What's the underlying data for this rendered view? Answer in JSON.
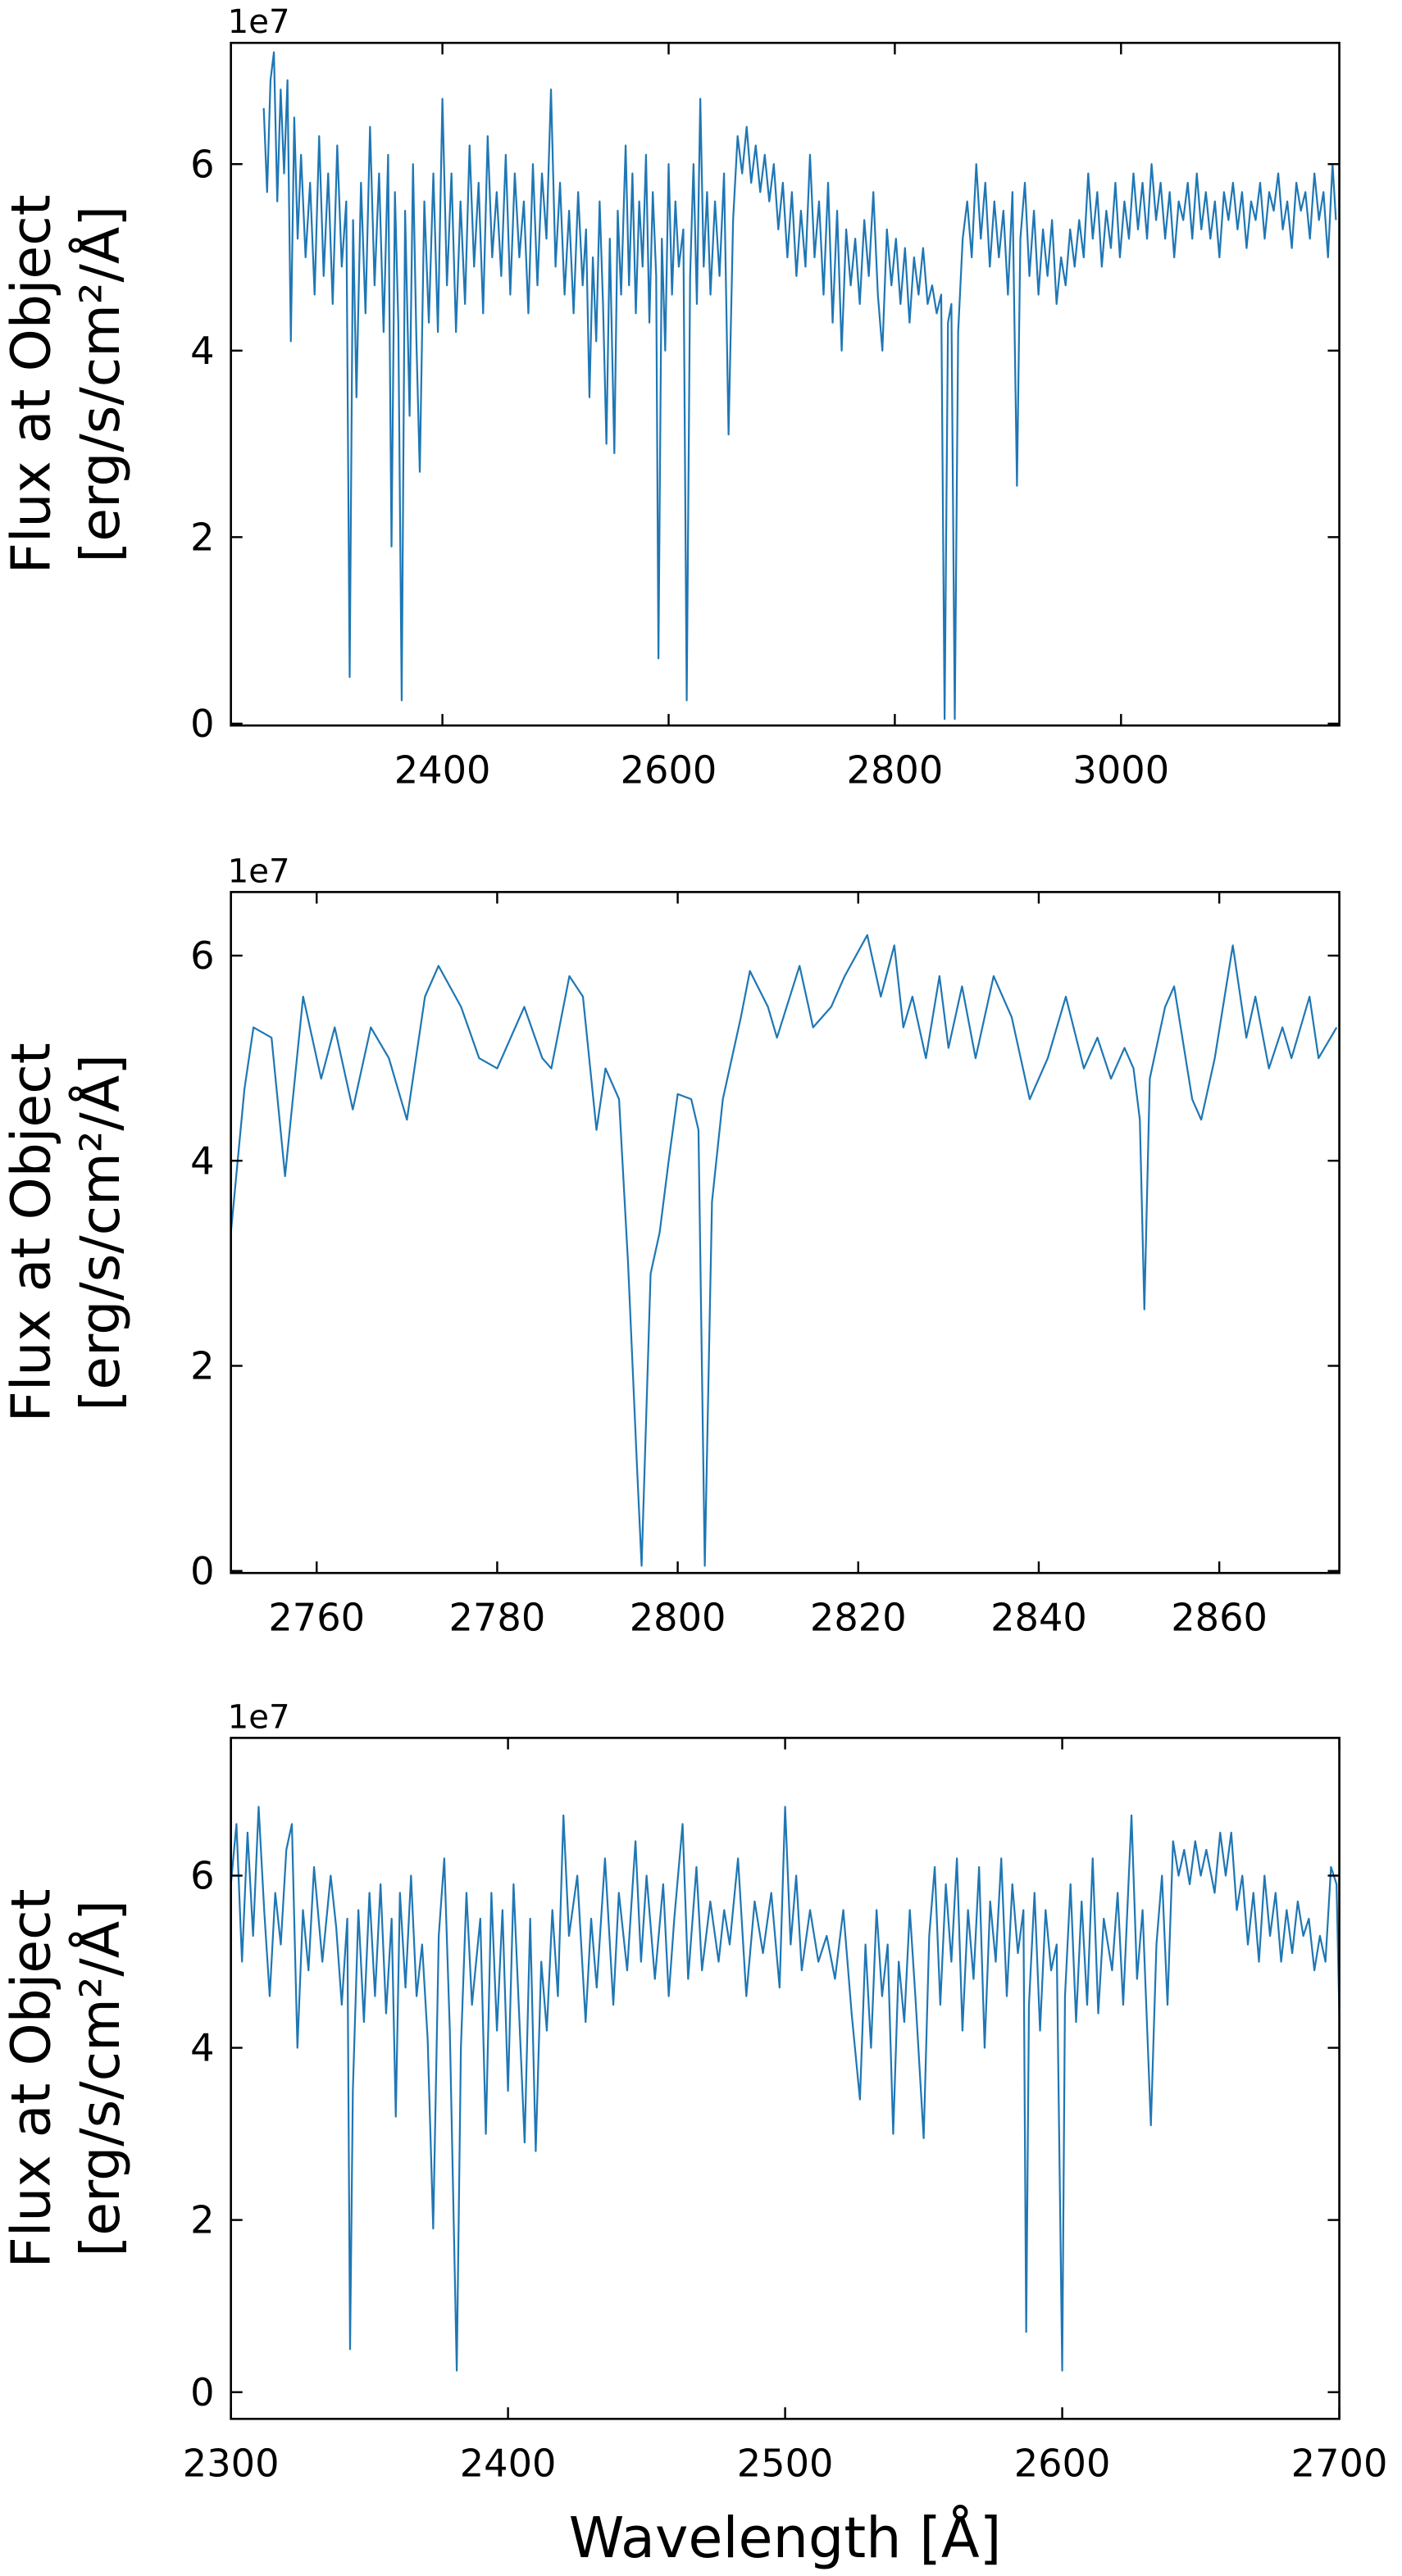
{
  "chart_data": [
    {
      "type": "line",
      "color": "#1f77b4",
      "offset_label": "1e7",
      "ylabel": [
        "Flux at Object",
        "[erg/s/cm²/Å]"
      ],
      "xlim": [
        2213,
        3193
      ],
      "ylim": [
        -0.02,
        7.3
      ],
      "xticks": [
        2400,
        2600,
        2800,
        3000
      ],
      "yticks": [
        0,
        2,
        4,
        6
      ],
      "x": [
        2242,
        2245,
        2248,
        2251,
        2254,
        2257,
        2260,
        2263,
        2266,
        2269,
        2272,
        2275,
        2279,
        2283,
        2287,
        2291,
        2295,
        2299,
        2303,
        2307,
        2311,
        2315,
        2318,
        2321,
        2324,
        2328,
        2332,
        2336,
        2340,
        2344,
        2348,
        2352,
        2355,
        2358,
        2361,
        2364,
        2367,
        2371,
        2374,
        2377,
        2380,
        2384,
        2388,
        2392,
        2396,
        2400,
        2404,
        2408,
        2412,
        2416,
        2420,
        2424,
        2428,
        2432,
        2436,
        2440,
        2444,
        2448,
        2452,
        2456,
        2460,
        2464,
        2468,
        2472,
        2476,
        2480,
        2484,
        2488,
        2492,
        2496,
        2500,
        2504,
        2508,
        2512,
        2516,
        2520,
        2524,
        2527,
        2530,
        2533,
        2536,
        2539,
        2542,
        2545,
        2548,
        2552,
        2555,
        2558,
        2562,
        2565,
        2568,
        2571,
        2574,
        2577,
        2580,
        2583,
        2586,
        2589,
        2591,
        2594,
        2597,
        2600,
        2603,
        2606,
        2609,
        2613,
        2616,
        2619,
        2622,
        2625,
        2628,
        2631,
        2634,
        2637,
        2641,
        2645,
        2649,
        2653,
        2657,
        2661,
        2665,
        2669,
        2673,
        2677,
        2681,
        2685,
        2689,
        2693,
        2697,
        2701,
        2705,
        2709,
        2713,
        2717,
        2721,
        2725,
        2729,
        2733,
        2737,
        2741,
        2745,
        2749,
        2753,
        2757,
        2761,
        2765,
        2769,
        2773,
        2777,
        2781,
        2785,
        2789,
        2793,
        2797,
        2801,
        2805,
        2809,
        2813,
        2817,
        2821,
        2825,
        2829,
        2833,
        2837,
        2841,
        2844,
        2847,
        2850,
        2853,
        2856,
        2860,
        2864,
        2868,
        2872,
        2876,
        2880,
        2884,
        2888,
        2892,
        2896,
        2900,
        2904,
        2908,
        2911,
        2915,
        2919,
        2923,
        2927,
        2931,
        2935,
        2939,
        2943,
        2947,
        2951,
        2955,
        2959,
        2963,
        2967,
        2971,
        2975,
        2979,
        2983,
        2987,
        2991,
        2995,
        2999,
        3003,
        3007,
        3011,
        3015,
        3019,
        3023,
        3027,
        3031,
        3035,
        3039,
        3043,
        3047,
        3051,
        3055,
        3059,
        3063,
        3067,
        3071,
        3075,
        3079,
        3083,
        3087,
        3091,
        3095,
        3099,
        3103,
        3107,
        3111,
        3115,
        3119,
        3123,
        3127,
        3131,
        3135,
        3139,
        3143,
        3147,
        3151,
        3155,
        3159,
        3163,
        3167,
        3171,
        3175,
        3179,
        3183,
        3187,
        3190
      ],
      "values": [
        6.6,
        5.7,
        6.9,
        7.2,
        5.6,
        6.8,
        5.9,
        6.9,
        4.1,
        6.5,
        5.2,
        6.1,
        5.0,
        5.8,
        4.6,
        6.3,
        4.8,
        5.9,
        4.5,
        6.2,
        4.9,
        5.6,
        0.5,
        5.4,
        3.5,
        5.8,
        4.4,
        6.4,
        4.7,
        5.9,
        4.2,
        6.1,
        1.9,
        5.7,
        4.3,
        0.25,
        5.5,
        3.3,
        6.0,
        4.1,
        2.7,
        5.6,
        4.3,
        5.9,
        4.2,
        6.7,
        4.7,
        5.9,
        4.2,
        5.6,
        4.5,
        6.2,
        4.9,
        5.8,
        4.4,
        6.3,
        5.0,
        5.7,
        4.8,
        6.1,
        4.6,
        5.9,
        5.0,
        5.6,
        4.4,
        6.0,
        4.7,
        5.9,
        5.2,
        6.8,
        4.9,
        5.8,
        4.6,
        5.5,
        4.4,
        5.7,
        4.7,
        5.3,
        3.5,
        5.0,
        4.1,
        5.6,
        4.5,
        3.0,
        5.2,
        2.9,
        5.5,
        4.6,
        6.2,
        4.7,
        5.9,
        4.4,
        5.6,
        4.9,
        6.1,
        4.3,
        5.7,
        4.8,
        0.7,
        5.2,
        4.0,
        6.0,
        4.6,
        5.6,
        4.9,
        5.3,
        0.25,
        4.8,
        6.0,
        4.5,
        6.7,
        4.9,
        5.7,
        4.6,
        5.6,
        4.8,
        5.9,
        3.1,
        5.4,
        6.3,
        5.9,
        6.4,
        5.8,
        6.2,
        5.7,
        6.1,
        5.6,
        6.0,
        5.3,
        5.8,
        5.0,
        5.7,
        4.8,
        5.5,
        4.9,
        6.1,
        5.0,
        5.6,
        4.6,
        5.8,
        4.3,
        5.5,
        4.0,
        5.3,
        4.7,
        5.2,
        4.5,
        5.4,
        4.8,
        5.7,
        4.6,
        4.0,
        5.3,
        4.7,
        5.2,
        4.5,
        5.1,
        4.3,
        5.0,
        4.6,
        5.1,
        4.5,
        4.7,
        4.4,
        4.6,
        0.05,
        4.3,
        4.5,
        0.05,
        4.2,
        5.2,
        5.6,
        5.0,
        6.0,
        5.2,
        5.8,
        4.9,
        5.6,
        5.0,
        5.5,
        4.6,
        5.7,
        2.55,
        5.2,
        5.8,
        4.8,
        5.5,
        4.6,
        5.3,
        4.8,
        5.4,
        4.5,
        5.0,
        4.7,
        5.3,
        4.9,
        5.4,
        5.0,
        5.9,
        5.2,
        5.7,
        4.9,
        5.5,
        5.1,
        5.8,
        5.0,
        5.6,
        5.2,
        5.9,
        5.3,
        5.8,
        5.2,
        6.0,
        5.4,
        5.8,
        5.2,
        5.7,
        5.0,
        5.6,
        5.4,
        5.8,
        5.2,
        5.9,
        5.3,
        5.7,
        5.2,
        5.6,
        5.0,
        5.7,
        5.4,
        5.8,
        5.3,
        5.7,
        5.1,
        5.6,
        5.4,
        5.8,
        5.2,
        5.7,
        5.5,
        5.9,
        5.3,
        5.6,
        5.1,
        5.8,
        5.5,
        5.7,
        5.2,
        5.9,
        5.4,
        5.7,
        5.0,
        6.0,
        5.4
      ]
    },
    {
      "type": "line",
      "color": "#1f77b4",
      "offset_label": "1e7",
      "ylabel": [
        "Flux at Object",
        "[erg/s/cm²/Å]"
      ],
      "xlim": [
        2750.5,
        2873.3
      ],
      "ylim": [
        -0.02,
        6.62
      ],
      "xticks": [
        2760,
        2780,
        2800,
        2820,
        2840,
        2860
      ],
      "yticks": [
        0,
        2,
        4,
        6
      ],
      "x": [
        2750.5,
        2752,
        2753,
        2755,
        2756.5,
        2758.5,
        2760.5,
        2762,
        2764,
        2766,
        2768,
        2770,
        2772,
        2773.5,
        2776,
        2778,
        2780,
        2783,
        2785,
        2786,
        2788,
        2789.5,
        2791,
        2792,
        2793.5,
        2794.5,
        2795.5,
        2796,
        2797,
        2798,
        2799,
        2800,
        2801.5,
        2802.3,
        2803,
        2803.8,
        2805,
        2806,
        2807,
        2808,
        2810,
        2811,
        2813.5,
        2815,
        2817,
        2818.5,
        2821,
        2822.5,
        2824,
        2825,
        2826,
        2827.5,
        2829,
        2830,
        2831.5,
        2833,
        2835,
        2837,
        2839,
        2841,
        2843,
        2845,
        2846.5,
        2848,
        2849.5,
        2850.5,
        2851.2,
        2851.7,
        2852.3,
        2854,
        2855,
        2857,
        2858,
        2859.5,
        2861.5,
        2863,
        2864,
        2865.5,
        2867,
        2868,
        2870,
        2871,
        2873
      ],
      "values": [
        3.3,
        4.7,
        5.3,
        5.2,
        3.85,
        5.6,
        4.8,
        5.3,
        4.5,
        5.3,
        5.0,
        4.4,
        5.6,
        5.9,
        5.5,
        5.0,
        4.9,
        5.5,
        5.0,
        4.9,
        5.8,
        5.6,
        4.3,
        4.9,
        4.6,
        3.0,
        1.0,
        0.05,
        2.9,
        3.3,
        4.0,
        4.65,
        4.6,
        4.3,
        0.05,
        3.6,
        4.6,
        5.0,
        5.4,
        5.85,
        5.5,
        5.2,
        5.9,
        5.3,
        5.5,
        5.8,
        6.2,
        5.6,
        6.1,
        5.3,
        5.6,
        5.0,
        5.8,
        5.1,
        5.7,
        5.0,
        5.8,
        5.4,
        4.6,
        5.0,
        5.6,
        4.9,
        5.2,
        4.8,
        5.1,
        4.9,
        4.4,
        2.55,
        4.8,
        5.5,
        5.7,
        4.6,
        4.4,
        5.0,
        6.1,
        5.2,
        5.6,
        4.9,
        5.3,
        5.0,
        5.6,
        5.0,
        5.3
      ]
    },
    {
      "type": "line",
      "color": "#1f77b4",
      "offset_label": "1e7",
      "ylabel": [
        "Flux at Object",
        "[erg/s/cm²/Å]"
      ],
      "xlabel": "Wavelength [Å]",
      "xlim": [
        2300,
        2700
      ],
      "ylim": [
        -0.31,
        7.6
      ],
      "xticks": [
        2300,
        2400,
        2500,
        2600,
        2700
      ],
      "yticks": [
        0,
        2,
        4,
        6
      ],
      "x": [
        2300,
        2302,
        2304,
        2306,
        2308,
        2310,
        2312,
        2314,
        2316,
        2318,
        2320,
        2322,
        2324,
        2326,
        2328,
        2330,
        2333,
        2336,
        2338,
        2340,
        2342,
        2343,
        2344,
        2346,
        2348,
        2350,
        2352,
        2354,
        2356,
        2358,
        2359.5,
        2361,
        2363,
        2365,
        2367,
        2369,
        2371,
        2373,
        2375,
        2377,
        2379,
        2381.5,
        2383,
        2385,
        2387,
        2390,
        2392,
        2394,
        2396,
        2398,
        2400,
        2402,
        2404,
        2406,
        2408,
        2410,
        2412,
        2414,
        2416,
        2418,
        2420,
        2422,
        2425,
        2428,
        2430,
        2432,
        2435,
        2438,
        2440,
        2443,
        2446,
        2448,
        2450,
        2453,
        2456,
        2458,
        2460,
        2463,
        2465,
        2468,
        2470,
        2473,
        2476,
        2478,
        2480,
        2483,
        2486,
        2489,
        2492,
        2495,
        2498,
        2500,
        2502,
        2504,
        2506,
        2509,
        2512,
        2515,
        2518,
        2521,
        2524,
        2527,
        2529,
        2531,
        2533,
        2535,
        2537,
        2539,
        2541,
        2543,
        2545,
        2547,
        2550,
        2552,
        2554,
        2556,
        2558,
        2560,
        2562,
        2564,
        2566,
        2568,
        2570,
        2572,
        2574,
        2576,
        2578,
        2580,
        2582,
        2584,
        2586,
        2587,
        2588,
        2590,
        2592,
        2594,
        2596,
        2598,
        2600,
        2601,
        2603,
        2605,
        2607,
        2609,
        2611,
        2613,
        2615,
        2618,
        2620,
        2622,
        2625,
        2627,
        2629,
        2632,
        2634,
        2636,
        2638,
        2640,
        2642,
        2644,
        2646,
        2648,
        2650,
        2652,
        2655,
        2657,
        2659,
        2661,
        2663,
        2665,
        2667,
        2669,
        2671,
        2673,
        2675,
        2677,
        2679,
        2681,
        2683,
        2685,
        2687,
        2689,
        2691,
        2693,
        2695,
        2697,
        2699,
        2700
      ],
      "values": [
        5.9,
        6.6,
        5.0,
        6.5,
        5.3,
        6.8,
        5.6,
        4.6,
        5.8,
        5.2,
        6.3,
        6.6,
        4.0,
        5.6,
        4.9,
        6.1,
        5.0,
        6.0,
        5.4,
        4.5,
        5.5,
        0.5,
        3.5,
        5.6,
        4.3,
        5.8,
        4.6,
        5.9,
        4.4,
        5.5,
        3.2,
        5.8,
        4.7,
        6.0,
        4.6,
        5.2,
        4.1,
        1.9,
        5.3,
        6.2,
        4.2,
        0.25,
        4.0,
        5.8,
        4.5,
        5.5,
        3.0,
        5.8,
        4.2,
        5.6,
        3.5,
        5.9,
        4.4,
        2.9,
        5.5,
        2.8,
        5.0,
        4.2,
        5.6,
        4.6,
        6.7,
        5.3,
        6.0,
        4.3,
        5.5,
        4.7,
        6.2,
        4.5,
        5.8,
        4.9,
        6.4,
        5.0,
        6.0,
        4.8,
        5.9,
        4.6,
        5.5,
        6.6,
        4.8,
        6.1,
        4.9,
        5.7,
        5.0,
        5.6,
        5.2,
        6.2,
        4.6,
        5.7,
        5.1,
        5.8,
        4.7,
        6.8,
        5.2,
        6.0,
        4.9,
        5.6,
        5.0,
        5.3,
        4.8,
        5.6,
        4.4,
        3.4,
        5.2,
        4.0,
        5.6,
        4.6,
        5.2,
        3.0,
        5.0,
        4.3,
        5.6,
        4.6,
        2.95,
        5.3,
        6.1,
        4.5,
        5.9,
        5.0,
        6.2,
        4.2,
        5.6,
        4.8,
        6.1,
        4.0,
        5.7,
        5.0,
        6.2,
        4.6,
        5.9,
        5.1,
        5.6,
        0.7,
        4.5,
        5.8,
        4.2,
        5.6,
        4.9,
        5.2,
        0.25,
        4.6,
        5.9,
        4.3,
        5.7,
        4.5,
        6.2,
        4.4,
        5.5,
        4.9,
        5.8,
        4.5,
        6.7,
        4.8,
        5.6,
        3.1,
        5.2,
        6.0,
        4.5,
        6.4,
        6.0,
        6.3,
        5.9,
        6.4,
        6.0,
        6.3,
        5.8,
        6.5,
        6.0,
        6.5,
        5.6,
        6.0,
        5.2,
        5.8,
        5.0,
        6.0,
        5.3,
        5.8,
        5.0,
        5.6,
        5.1,
        5.7,
        5.3,
        5.5,
        4.9,
        5.3,
        5.0,
        6.1,
        5.9,
        4.4
      ]
    }
  ]
}
